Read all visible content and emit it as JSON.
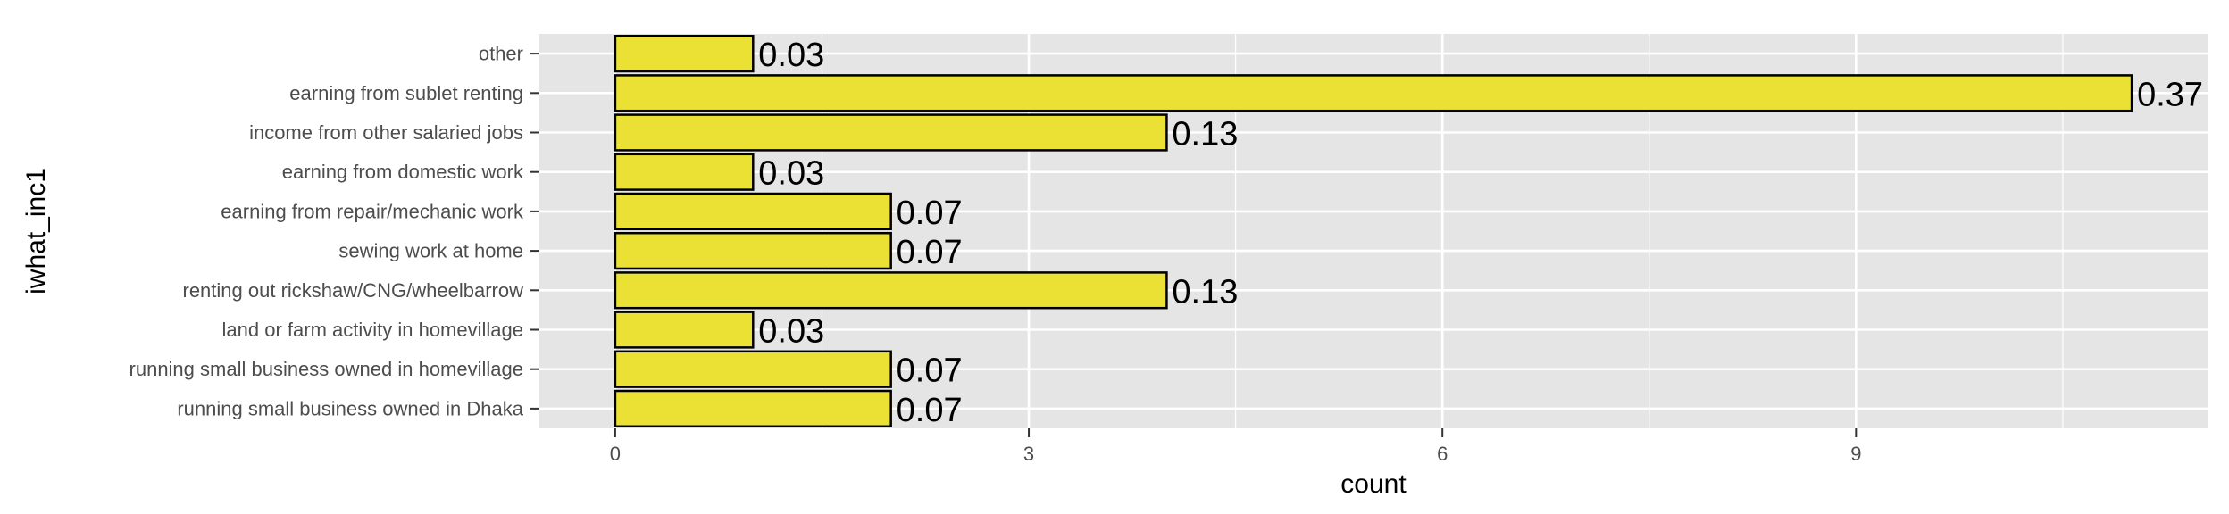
{
  "chart_data": {
    "type": "bar",
    "orientation": "horizontal",
    "xlabel": "count",
    "ylabel": "iwhat_inc1",
    "xlim": [
      -0.55,
      11.55
    ],
    "xticks": [
      0,
      3,
      6,
      9
    ],
    "categories": [
      "other",
      "earning from sublet renting",
      "income from other salaried jobs",
      "earning from domestic work",
      "earning from repair/mechanic work",
      "sewing work at home ",
      "renting out rickshaw/CNG/wheelbarrow",
      "land or farm activity in homevillage",
      "running small business owned in homevillage",
      "running small business owned in Dhaka"
    ],
    "values": [
      1,
      11,
      4,
      1,
      2,
      2,
      4,
      1,
      2,
      2
    ],
    "labels": [
      "0.03",
      "0.37",
      "0.13",
      "0.03",
      "0.07",
      "0.07",
      "0.13",
      "0.03",
      "0.07",
      "0.07"
    ],
    "grid": true,
    "bar_fill": "#ebe134",
    "bar_outline": "#000000",
    "panel_background": "#e5e5e5",
    "gridline_color": "#ffffff"
  }
}
